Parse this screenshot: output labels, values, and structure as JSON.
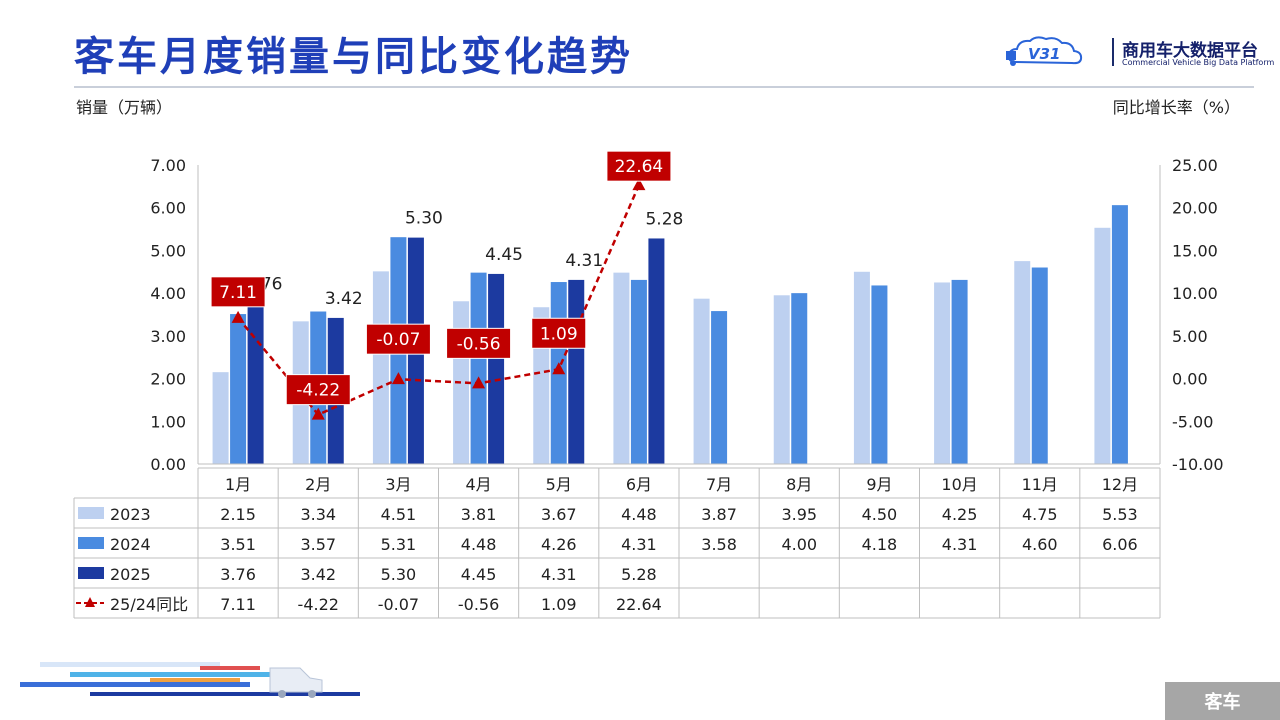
{
  "page": {
    "title": "客车月度销量与同比变化趋势",
    "footer_tag": "客车"
  },
  "logo": {
    "badge_text": "V31",
    "name": "商用车大数据平台",
    "subtitle": "Commercial Vehicle Big Data Platform"
  },
  "colors": {
    "title": "#1f3fb8",
    "s2023": "#bdd0f0",
    "s2024": "#4a8be0",
    "s2025": "#1c3aa0",
    "yoy": "#c00000"
  },
  "chart_data": {
    "type": "bar",
    "ylabel": "销量（万辆）",
    "y2label": "同比增长率（%）",
    "ylim": [
      0,
      7
    ],
    "y2lim": [
      -10,
      25
    ],
    "yticks": [
      "0.00",
      "1.00",
      "2.00",
      "3.00",
      "4.00",
      "5.00",
      "6.00",
      "7.00"
    ],
    "y2ticks": [
      "-10.00",
      "-5.00",
      "0.00",
      "5.00",
      "10.00",
      "15.00",
      "20.00",
      "25.00"
    ],
    "categories": [
      "1月",
      "2月",
      "3月",
      "4月",
      "5月",
      "6月",
      "7月",
      "8月",
      "9月",
      "10月",
      "11月",
      "12月"
    ],
    "series": [
      {
        "name": "2023",
        "kind": "bar",
        "values": [
          2.15,
          3.34,
          4.51,
          3.81,
          3.67,
          4.48,
          3.87,
          3.95,
          4.5,
          4.25,
          4.75,
          5.53
        ]
      },
      {
        "name": "2024",
        "kind": "bar",
        "values": [
          3.51,
          3.57,
          5.31,
          4.48,
          4.26,
          4.31,
          3.58,
          4.0,
          4.18,
          4.31,
          4.6,
          6.06
        ]
      },
      {
        "name": "2025",
        "kind": "bar",
        "values": [
          3.76,
          3.42,
          5.3,
          4.45,
          4.31,
          5.28,
          null,
          null,
          null,
          null,
          null,
          null
        ]
      },
      {
        "name": "25/24同比",
        "kind": "line",
        "axis": "right",
        "values": [
          7.11,
          -4.22,
          -0.07,
          -0.56,
          1.09,
          22.64,
          null,
          null,
          null,
          null,
          null,
          null
        ]
      }
    ],
    "table": {
      "rows": [
        {
          "name": "2023",
          "cells": [
            "2.15",
            "3.34",
            "4.51",
            "3.81",
            "3.67",
            "4.48",
            "3.87",
            "3.95",
            "4.50",
            "4.25",
            "4.75",
            "5.53"
          ]
        },
        {
          "name": "2024",
          "cells": [
            "3.51",
            "3.57",
            "5.31",
            "4.48",
            "4.26",
            "4.31",
            "3.58",
            "4.00",
            "4.18",
            "4.31",
            "4.60",
            "6.06"
          ]
        },
        {
          "name": "2025",
          "cells": [
            "3.76",
            "3.42",
            "5.30",
            "4.45",
            "4.31",
            "5.28",
            "",
            "",
            "",
            "",
            "",
            ""
          ]
        },
        {
          "name": "25/24同比",
          "cells": [
            "7.11",
            "-4.22",
            "-0.07",
            "-0.56",
            "1.09",
            "22.64",
            "",
            "",
            "",
            "",
            "",
            ""
          ]
        }
      ]
    }
  }
}
